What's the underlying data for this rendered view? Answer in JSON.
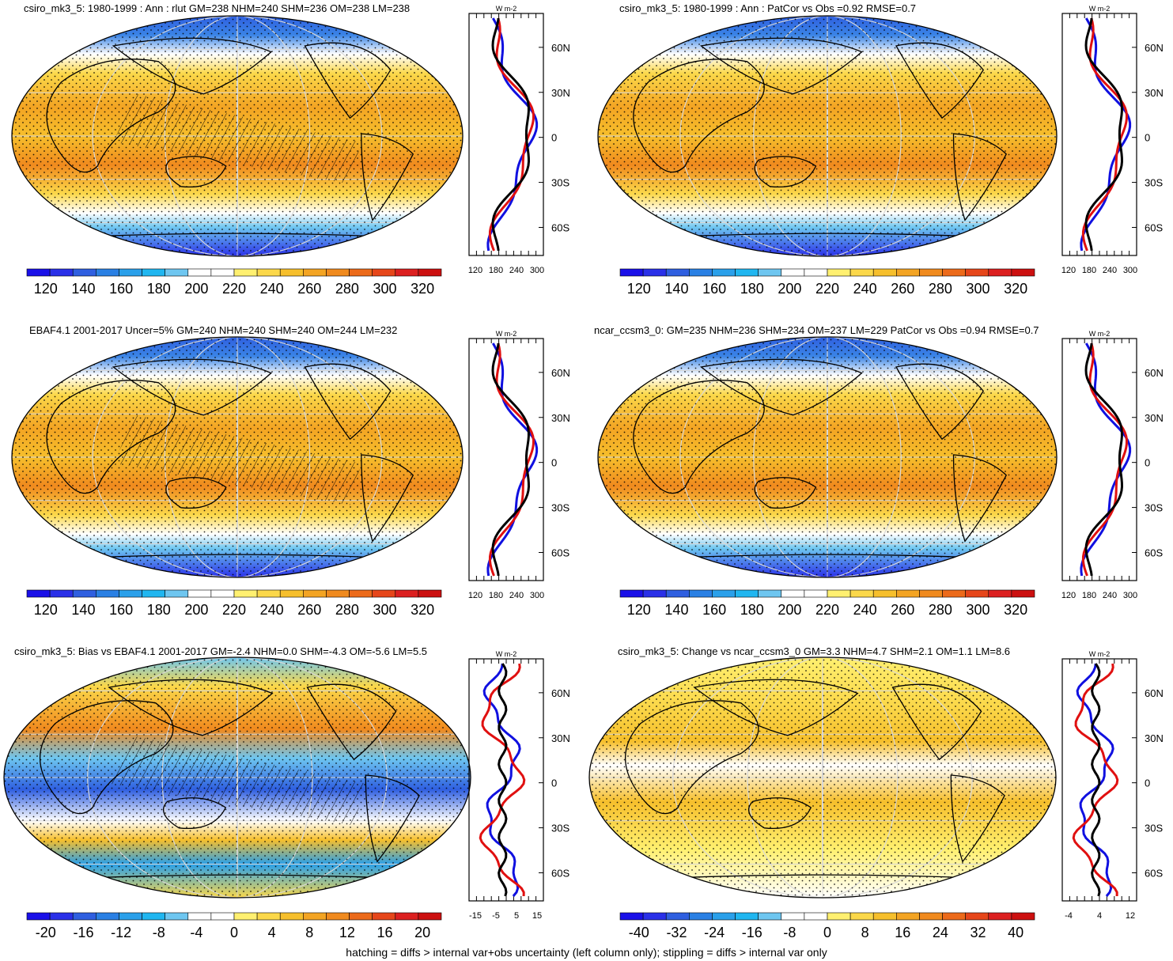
{
  "footer": "hatching = diffs > internal var+obs uncertainty (left column only); stippling = diffs > internal var only",
  "profile_unit": "W m-2",
  "lat_labels": [
    "60N",
    "30N",
    "0",
    "30S",
    "60S"
  ],
  "colors": {
    "series_model": "#000000",
    "series_obs": "#1010e0",
    "series_other": "#e01010",
    "ramp": [
      "#1a10e8",
      "#2a30e8",
      "#2f5fe0",
      "#2a80e4",
      "#2aa0ea",
      "#20b6f0",
      "#6ec6f0",
      "#ffffff",
      "#ffffff",
      "#fff070",
      "#fbd84a",
      "#f6bf2c",
      "#f3a423",
      "#f08a1e",
      "#ec6a1a",
      "#e6461a",
      "#dc2020",
      "#cc1010"
    ]
  },
  "panels": [
    {
      "id": "model-rlut",
      "title": "csiro_mk3_5: 1980-1999 : Ann : rlut GM=238 NHM=240 SHM=236 OM=238 LM=238",
      "colorbar_labels": [
        "120",
        "140",
        "160",
        "180",
        "200",
        "220",
        "240",
        "260",
        "280",
        "300",
        "320"
      ],
      "profile_ticks": [
        "120",
        "180",
        "240",
        "300"
      ],
      "hatched": true
    },
    {
      "id": "model-patcor",
      "title": "csiro_mk3_5: 1980-1999 : Ann : PatCor vs Obs =0.92 RMSE=0.7",
      "colorbar_labels": [
        "120",
        "140",
        "160",
        "180",
        "200",
        "220",
        "240",
        "260",
        "280",
        "300",
        "320"
      ],
      "profile_ticks": [
        "120",
        "180",
        "240",
        "300"
      ],
      "hatched": false
    },
    {
      "id": "obs-ebaf",
      "title": "EBAF4.1 2001-2017 Uncer=5% GM=240 NHM=240 SHM=240 OM=244 LM=232",
      "colorbar_labels": [
        "120",
        "140",
        "160",
        "180",
        "200",
        "220",
        "240",
        "260",
        "280",
        "300",
        "320"
      ],
      "profile_ticks": [
        "120",
        "180",
        "240",
        "300"
      ],
      "hatched": true
    },
    {
      "id": "ref-model",
      "title": "ncar_ccsm3_0: GM=235 NHM=236 SHM=234 OM=237 LM=229 PatCor vs Obs =0.94 RMSE=0.7",
      "colorbar_labels": [
        "120",
        "140",
        "160",
        "180",
        "200",
        "220",
        "240",
        "260",
        "280",
        "300",
        "320"
      ],
      "profile_ticks": [
        "120",
        "180",
        "240",
        "300"
      ],
      "hatched": false
    },
    {
      "id": "bias",
      "title": "csiro_mk3_5: Bias vs EBAF4.1 2001-2017 GM=-2.4 NHM=0.0 SHM=-4.3 OM=-5.6 LM=5.5",
      "colorbar_labels": [
        "-20",
        "-16",
        "-12",
        "-8",
        "-4",
        "0",
        "4",
        "8",
        "12",
        "16",
        "20"
      ],
      "profile_ticks": [
        "-15",
        "-5",
        "5",
        "15"
      ],
      "hatched": true
    },
    {
      "id": "change",
      "title": "csiro_mk3_5: Change vs ncar_ccsm3_0 GM=3.3 NHM=4.7 SHM=2.1 OM=1.1 LM=8.6",
      "colorbar_labels": [
        "-40",
        "-32",
        "-24",
        "-16",
        "-8",
        "0",
        "8",
        "16",
        "24",
        "32",
        "40"
      ],
      "profile_ticks": [
        "-4",
        "4",
        "12"
      ],
      "hatched": false
    }
  ]
}
